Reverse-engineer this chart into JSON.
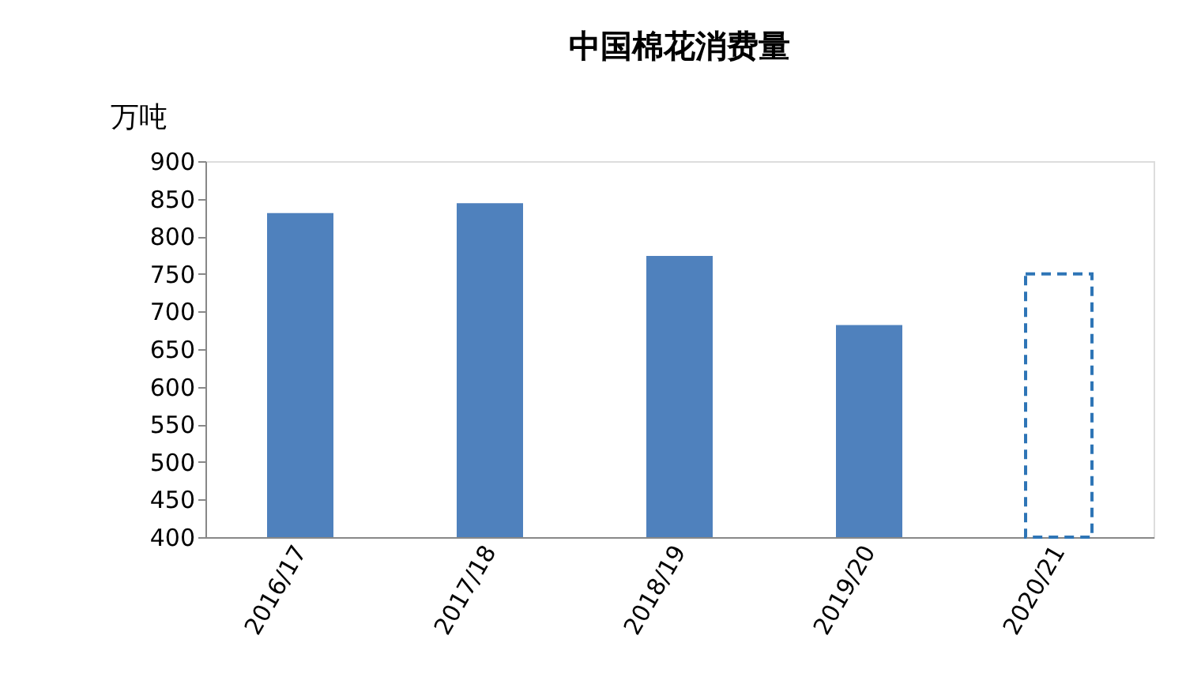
{
  "chart_data": {
    "type": "bar",
    "title": "中国棉花消费量",
    "ylabel": "万吨",
    "categories": [
      "2016/17",
      "2017/18",
      "2018/19",
      "2019/20",
      "2020/21"
    ],
    "series": [
      {
        "color": "#4f81bd",
        "values": [
          831,
          844,
          774,
          682,
          null
        ]
      },
      {
        "color": "#2e75b6",
        "line_style": "dashed",
        "values": [
          null,
          null,
          null,
          null,
          750
        ]
      }
    ],
    "ylim": [
      400,
      900
    ],
    "yticks": [
      400,
      450,
      500,
      550,
      600,
      650,
      700,
      750,
      800,
      850,
      900
    ],
    "grid": false
  }
}
